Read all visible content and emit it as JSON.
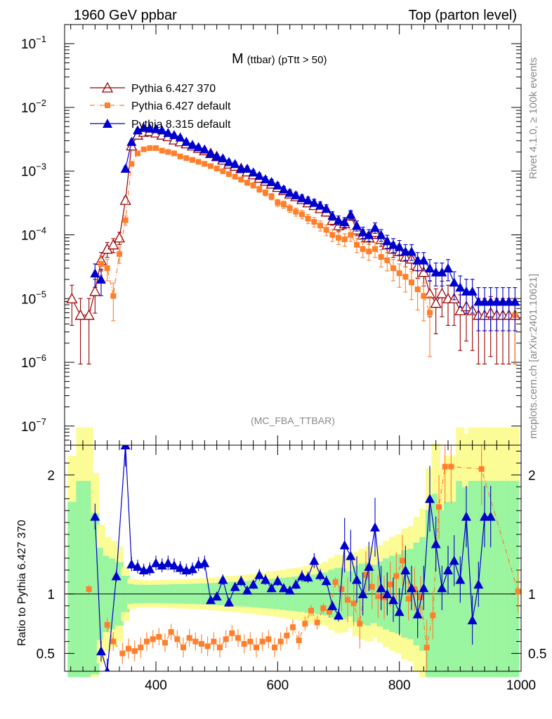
{
  "header": {
    "left": "1960 GeV ppbar",
    "right": "Top (parton level)"
  },
  "side_labels": {
    "rivet": "Rivet 4.1.0, ≥ 100k events",
    "mcplots": "mcplots.cern.ch [arXiv:2401.10621]"
  },
  "plot_title": {
    "main": "M",
    "sub": "(ttbar) (pTtt > 50)"
  },
  "analysis_label": "(MC_FBA_TTBAR)",
  "chart_data": {
    "type": "line",
    "x_range": [
      250,
      1000
    ],
    "x_ticks": [
      400,
      600,
      800,
      1000
    ],
    "x_tick_labels": [
      "400",
      "600",
      "800",
      "1000"
    ],
    "main_panel": {
      "yscale": "log",
      "ylim_exp": [
        -7.3,
        -0.7
      ],
      "y_ticks_exp": [
        -7,
        -6,
        -5,
        -4,
        -3,
        -2,
        -1
      ],
      "y_tick_labels": [
        {
          "base": "10",
          "exp": "−7"
        },
        {
          "base": "10",
          "exp": "−6"
        },
        {
          "base": "10",
          "exp": "−5"
        },
        {
          "base": "10",
          "exp": "−4"
        },
        {
          "base": "10",
          "exp": "−3"
        },
        {
          "base": "10",
          "exp": "−2"
        },
        {
          "base": "10",
          "exp": "−1"
        }
      ]
    },
    "ratio_panel": {
      "ylabel": "Ratio to Pythia 6.427 370",
      "ylim": [
        0.35,
        2.25
      ],
      "y_ticks": [
        0.5,
        1,
        2
      ],
      "y_tick_labels": [
        "0.5",
        "1",
        "2"
      ],
      "band_inner_color": "#99f59f",
      "band_outer_color": "#fcfc96"
    },
    "series": [
      {
        "name": "Pythia 6.427 370",
        "color": "#990000",
        "marker": "open-triangle",
        "linestyle": "solid",
        "x": [
          262,
          276,
          290,
          300,
          310,
          320,
          330,
          340,
          350,
          360,
          370,
          380,
          390,
          400,
          410,
          420,
          430,
          440,
          450,
          460,
          470,
          480,
          490,
          500,
          510,
          520,
          530,
          540,
          550,
          560,
          570,
          580,
          590,
          600,
          610,
          620,
          630,
          640,
          650,
          660,
          670,
          680,
          690,
          700,
          710,
          720,
          730,
          740,
          750,
          760,
          770,
          780,
          790,
          800,
          810,
          820,
          830,
          840,
          850,
          860,
          870,
          880,
          890,
          900,
          910,
          920,
          930,
          940,
          950,
          960,
          970,
          980,
          990
        ],
        "y": [
          1e-05,
          5.5e-06,
          5.5e-06,
          1.3e-05,
          4e-05,
          6e-05,
          7e-05,
          9e-05,
          0.00035,
          0.0025,
          0.0037,
          0.0041,
          0.0042,
          0.004,
          0.0037,
          0.0035,
          0.0031,
          0.0029,
          0.0027,
          0.0025,
          0.0023,
          0.0021,
          0.0019,
          0.0017,
          0.0015,
          0.0013,
          0.0012,
          0.0011,
          0.00098,
          0.00088,
          0.00078,
          0.0007,
          0.00063,
          0.00056,
          0.0005,
          0.00044,
          0.0004,
          0.00036,
          0.00032,
          0.00029,
          0.00026,
          0.00023,
          0.00017,
          0.00014,
          0.00015,
          0.0002,
          0.00012,
          0.0001,
          9e-05,
          0.00011,
          8.5e-05,
          7e-05,
          6e-05,
          5.5e-05,
          4.5e-05,
          4.2e-05,
          3.2e-05,
          2.6e-05,
          1.2e-05,
          8.5e-06,
          1.2e-05,
          1e-05,
          1e-05,
          6.5e-06,
          7.5e-06,
          6.5e-06,
          5.5e-06,
          5.5e-06,
          6e-06,
          5.5e-06,
          5.5e-06,
          5.5e-06,
          5.5e-06
        ]
      },
      {
        "name": "Pythia 6.427 default",
        "color": "#ff7f2a",
        "marker": "square",
        "linestyle": "dashdot",
        "x": [
          262,
          276,
          290,
          300,
          310,
          320,
          330,
          340,
          350,
          360,
          370,
          380,
          390,
          400,
          410,
          420,
          430,
          440,
          450,
          460,
          470,
          480,
          490,
          500,
          510,
          520,
          530,
          540,
          550,
          560,
          570,
          580,
          590,
          600,
          610,
          620,
          630,
          640,
          650,
          660,
          670,
          680,
          690,
          700,
          710,
          720,
          730,
          740,
          750,
          760,
          770,
          780,
          790,
          800,
          810,
          820,
          830,
          840,
          850,
          860,
          870,
          880,
          890,
          900,
          910,
          920,
          930,
          940,
          950,
          960,
          970,
          980,
          990
        ],
        "y": [
          null,
          null,
          null,
          null,
          3.5e-05,
          3e-05,
          1.1e-05,
          5e-05,
          0.00017,
          0.0013,
          0.0019,
          0.0022,
          0.0023,
          0.0023,
          0.0021,
          0.002,
          0.0019,
          0.0017,
          0.0016,
          0.0015,
          0.0014,
          0.0013,
          0.0012,
          0.0011,
          0.001,
          0.0009,
          0.00082,
          0.00074,
          0.00066,
          0.0006,
          0.00052,
          0.00046,
          0.0004,
          0.00032,
          0.0003,
          0.00026,
          0.00023,
          0.00021,
          0.00018,
          0.00016,
          0.00014,
          0.00012,
          0.0001,
          9e-05,
          8.5e-05,
          0.0001,
          7e-05,
          6e-05,
          5.5e-05,
          6e-05,
          4.5e-05,
          4e-05,
          3e-05,
          2.5e-05,
          2.2e-05,
          1.8e-05,
          1.4e-05,
          1.1e-05,
          6e-06,
          null,
          null,
          null,
          null,
          null,
          null,
          null,
          null,
          null,
          null,
          null,
          null,
          null,
          5.5e-06
        ]
      },
      {
        "name": "Pythia 8.315 default",
        "color": "#0000cc",
        "marker": "filled-triangle",
        "linestyle": "solid",
        "x": [
          262,
          276,
          290,
          300,
          310,
          320,
          330,
          340,
          350,
          360,
          370,
          380,
          390,
          400,
          410,
          420,
          430,
          440,
          450,
          460,
          470,
          480,
          490,
          500,
          510,
          520,
          530,
          540,
          550,
          560,
          570,
          580,
          590,
          600,
          610,
          620,
          630,
          640,
          650,
          660,
          670,
          680,
          690,
          700,
          710,
          720,
          730,
          740,
          750,
          760,
          770,
          780,
          790,
          800,
          810,
          820,
          830,
          840,
          850,
          860,
          870,
          880,
          890,
          900,
          910,
          920,
          930,
          940,
          950,
          960,
          970,
          980,
          990
        ],
        "y": [
          null,
          null,
          null,
          2.5e-05,
          2e-05,
          null,
          null,
          null,
          0.0011,
          0.0029,
          0.0044,
          0.0048,
          0.0047,
          0.0046,
          0.0044,
          0.004,
          0.0037,
          0.0034,
          0.0029,
          0.0026,
          0.0024,
          0.0022,
          0.0019,
          0.0017,
          0.0016,
          0.0014,
          0.0013,
          0.0011,
          0.0011,
          0.00096,
          0.00085,
          0.00075,
          0.00068,
          0.0006,
          0.00052,
          0.00046,
          0.00042,
          0.00038,
          0.00035,
          0.00032,
          0.00029,
          0.00026,
          0.0002,
          0.00017,
          0.00016,
          0.00021,
          0.00014,
          0.00011,
          0.0001,
          0.00013,
          0.0001,
          8e-05,
          7e-05,
          6.5e-05,
          5.5e-05,
          5.5e-05,
          4e-05,
          4e-05,
          3e-05,
          2.6e-05,
          2.6e-05,
          3e-05,
          1.8e-05,
          1.5e-05,
          1.3e-05,
          1.3e-05,
          9e-06,
          9e-06,
          9e-06,
          9e-06,
          9e-06,
          9e-06,
          9e-06
        ]
      }
    ],
    "ratio_series": [
      {
        "name": "Pythia 6.427 default",
        "x": [
          290,
          300,
          320,
          330,
          345,
          355,
          365,
          375,
          385,
          395,
          405,
          415,
          425,
          435,
          445,
          455,
          465,
          475,
          485,
          495,
          505,
          515,
          525,
          535,
          545,
          555,
          565,
          575,
          585,
          595,
          605,
          615,
          625,
          635,
          645,
          655,
          665,
          675,
          685,
          695,
          705,
          715,
          725,
          735,
          745,
          755,
          765,
          775,
          785,
          795,
          805,
          815,
          825,
          835,
          845,
          855,
          865,
          875,
          885,
          935,
          995
        ],
        "y": [
          1.04,
          null,
          0.74,
          0.6,
          0.5,
          0.54,
          0.52,
          0.55,
          0.6,
          0.62,
          0.64,
          0.59,
          0.68,
          0.62,
          0.55,
          0.63,
          0.6,
          0.58,
          0.56,
          0.6,
          0.55,
          0.62,
          0.67,
          0.63,
          0.58,
          0.6,
          0.55,
          0.6,
          0.62,
          0.55,
          0.6,
          0.65,
          0.72,
          0.61,
          0.75,
          0.86,
          0.76,
          0.88,
          0.85,
          1.1,
          1.04,
          0.95,
          0.92,
          0.75,
          1.16,
          1.06,
          0.98,
          0.97,
          1.08,
          1.15,
          1.28,
          0.96,
          1.04,
          0.97,
          0.55,
          0.82,
          1.73,
          2.07,
          2.07,
          2.05,
          1.02
        ],
        "color": "#ff7f2a"
      },
      {
        "name": "Pythia 8.315 default",
        "x": [
          300,
          310,
          320,
          335,
          350,
          360,
          370,
          380,
          390,
          400,
          410,
          420,
          430,
          440,
          450,
          460,
          470,
          480,
          490,
          500,
          510,
          520,
          530,
          540,
          550,
          560,
          570,
          580,
          590,
          600,
          610,
          620,
          630,
          640,
          650,
          660,
          670,
          680,
          690,
          700,
          710,
          720,
          730,
          740,
          750,
          760,
          770,
          780,
          790,
          800,
          810,
          820,
          830,
          840,
          850,
          860,
          870,
          880,
          890,
          900,
          910,
          920,
          930,
          940,
          950
        ],
        "y": [
          1.65,
          0.52,
          0.35,
          1.15,
          2.25,
          1.25,
          1.23,
          1.2,
          1.21,
          1.26,
          1.24,
          1.26,
          1.24,
          1.22,
          1.2,
          1.21,
          1.25,
          1.26,
          0.95,
          0.98,
          1.12,
          0.93,
          1.06,
          1.11,
          1.03,
          1.08,
          1.16,
          1.12,
          1.05,
          1.11,
          1.05,
          1.03,
          1.08,
          1.15,
          1.14,
          1.28,
          1.16,
          1.11,
          0.9,
          0.82,
          1.41,
          1.32,
          1.12,
          1.0,
          1.23,
          1.56,
          1.05,
          1.0,
          0.95,
          0.85,
          1.2,
          1.05,
          0.83,
          1.05,
          1.8,
          1.42,
          1.05,
          1.2,
          1.28,
          1.12,
          1.65,
          0.78,
          1.08,
          1.65,
          1.65
        ],
        "color": "#0000cc"
      }
    ]
  }
}
